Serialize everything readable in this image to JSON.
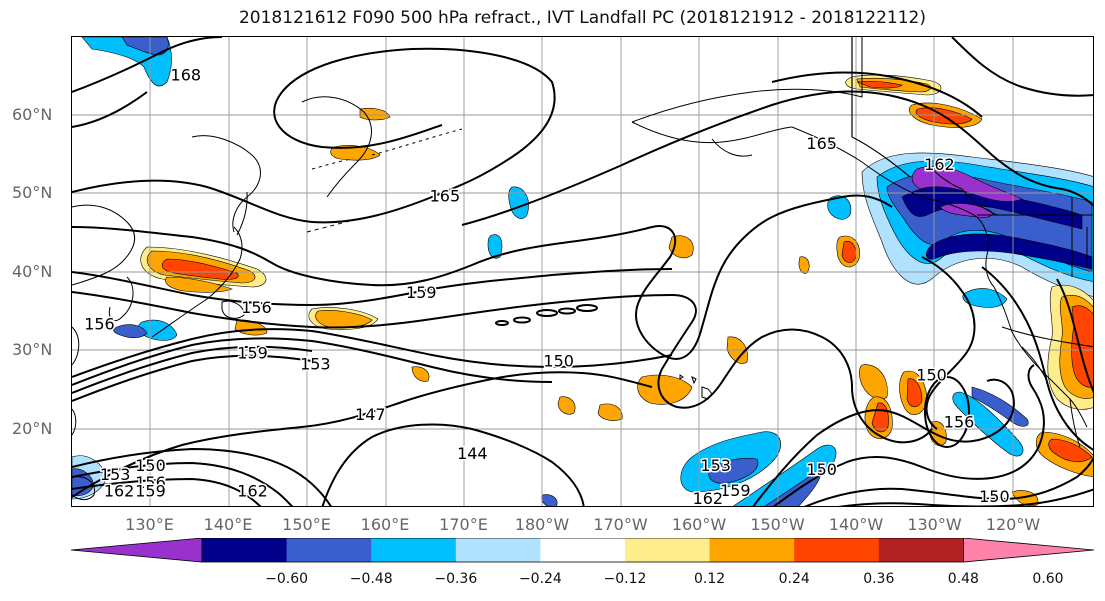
{
  "title": "2018121612 F090 500 hPa refract., IVT Landfall PC (2018121912 - 2018122112)",
  "lat_labels": [
    {
      "text": "60°N",
      "lat": 60
    },
    {
      "text": "50°N",
      "lat": 50
    },
    {
      "text": "40°N",
      "lat": 40
    },
    {
      "text": "30°N",
      "lat": 30
    },
    {
      "text": "20°N",
      "lat": 20
    }
  ],
  "lon_labels": [
    {
      "text": "130°E",
      "lon": 130
    },
    {
      "text": "140°E",
      "lon": 140
    },
    {
      "text": "150°E",
      "lon": 150
    },
    {
      "text": "160°E",
      "lon": 160
    },
    {
      "text": "170°E",
      "lon": 170
    },
    {
      "text": "180°W",
      "lon": 180
    },
    {
      "text": "170°W",
      "lon": 190
    },
    {
      "text": "160°W",
      "lon": 200
    },
    {
      "text": "150°W",
      "lon": 210
    },
    {
      "text": "140°W",
      "lon": 220
    },
    {
      "text": "130°W",
      "lon": 230
    },
    {
      "text": "120°W",
      "lon": 240
    }
  ],
  "colorbar": {
    "colors": [
      "#9932cc",
      "#00008b",
      "#3a5fcd",
      "#00bfff",
      "#b0e2ff",
      "#ffffff",
      "#ffec8b",
      "#ffa500",
      "#ff4500",
      "#b22222",
      "#ff82ab"
    ],
    "tick_labels": [
      "−0.60",
      "−0.48",
      "−0.36",
      "−0.24",
      "−0.12",
      "0.12",
      "0.24",
      "0.36",
      "0.48",
      "0.60"
    ]
  },
  "contour_labels": [
    {
      "text": "168",
      "lon": 134.5,
      "lat": 65.2
    },
    {
      "text": "165",
      "lon": 167.5,
      "lat": 49.8
    },
    {
      "text": "165",
      "lon": 215.5,
      "lat": 56.5
    },
    {
      "text": "162",
      "lon": 230.5,
      "lat": 53.8
    },
    {
      "text": "159",
      "lon": 164.5,
      "lat": 37.5
    },
    {
      "text": "156",
      "lon": 143.5,
      "lat": 35.6
    },
    {
      "text": "156",
      "lon": 123.5,
      "lat": 33.5
    },
    {
      "text": "159",
      "lon": 143.0,
      "lat": 29.8
    },
    {
      "text": "153",
      "lon": 151.0,
      "lat": 28.4
    },
    {
      "text": "150",
      "lon": 182.0,
      "lat": 28.8
    },
    {
      "text": "147",
      "lon": 158.0,
      "lat": 22.0
    },
    {
      "text": "144",
      "lon": 171.0,
      "lat": 17.0
    },
    {
      "text": "150",
      "lon": 130.0,
      "lat": 15.5
    },
    {
      "text": "153",
      "lon": 125.5,
      "lat": 14.3
    },
    {
      "text": "156",
      "lon": 130.0,
      "lat": 13.3
    },
    {
      "text": "159",
      "lon": 130.0,
      "lat": 12.2
    },
    {
      "text": "162",
      "lon": 126.0,
      "lat": 12.2
    },
    {
      "text": "162",
      "lon": 143.0,
      "lat": 12.2
    },
    {
      "text": "153",
      "lon": 202.0,
      "lat": 15.5
    },
    {
      "text": "159",
      "lon": 204.5,
      "lat": 12.3
    },
    {
      "text": "162",
      "lon": 201.0,
      "lat": 11.3
    },
    {
      "text": "150",
      "lon": 215.5,
      "lat": 15.0
    },
    {
      "text": "150",
      "lon": 229.5,
      "lat": 27.0
    },
    {
      "text": "156",
      "lon": 233.0,
      "lat": 21.0
    },
    {
      "text": "150",
      "lon": 237.5,
      "lat": 11.5
    }
  ]
}
